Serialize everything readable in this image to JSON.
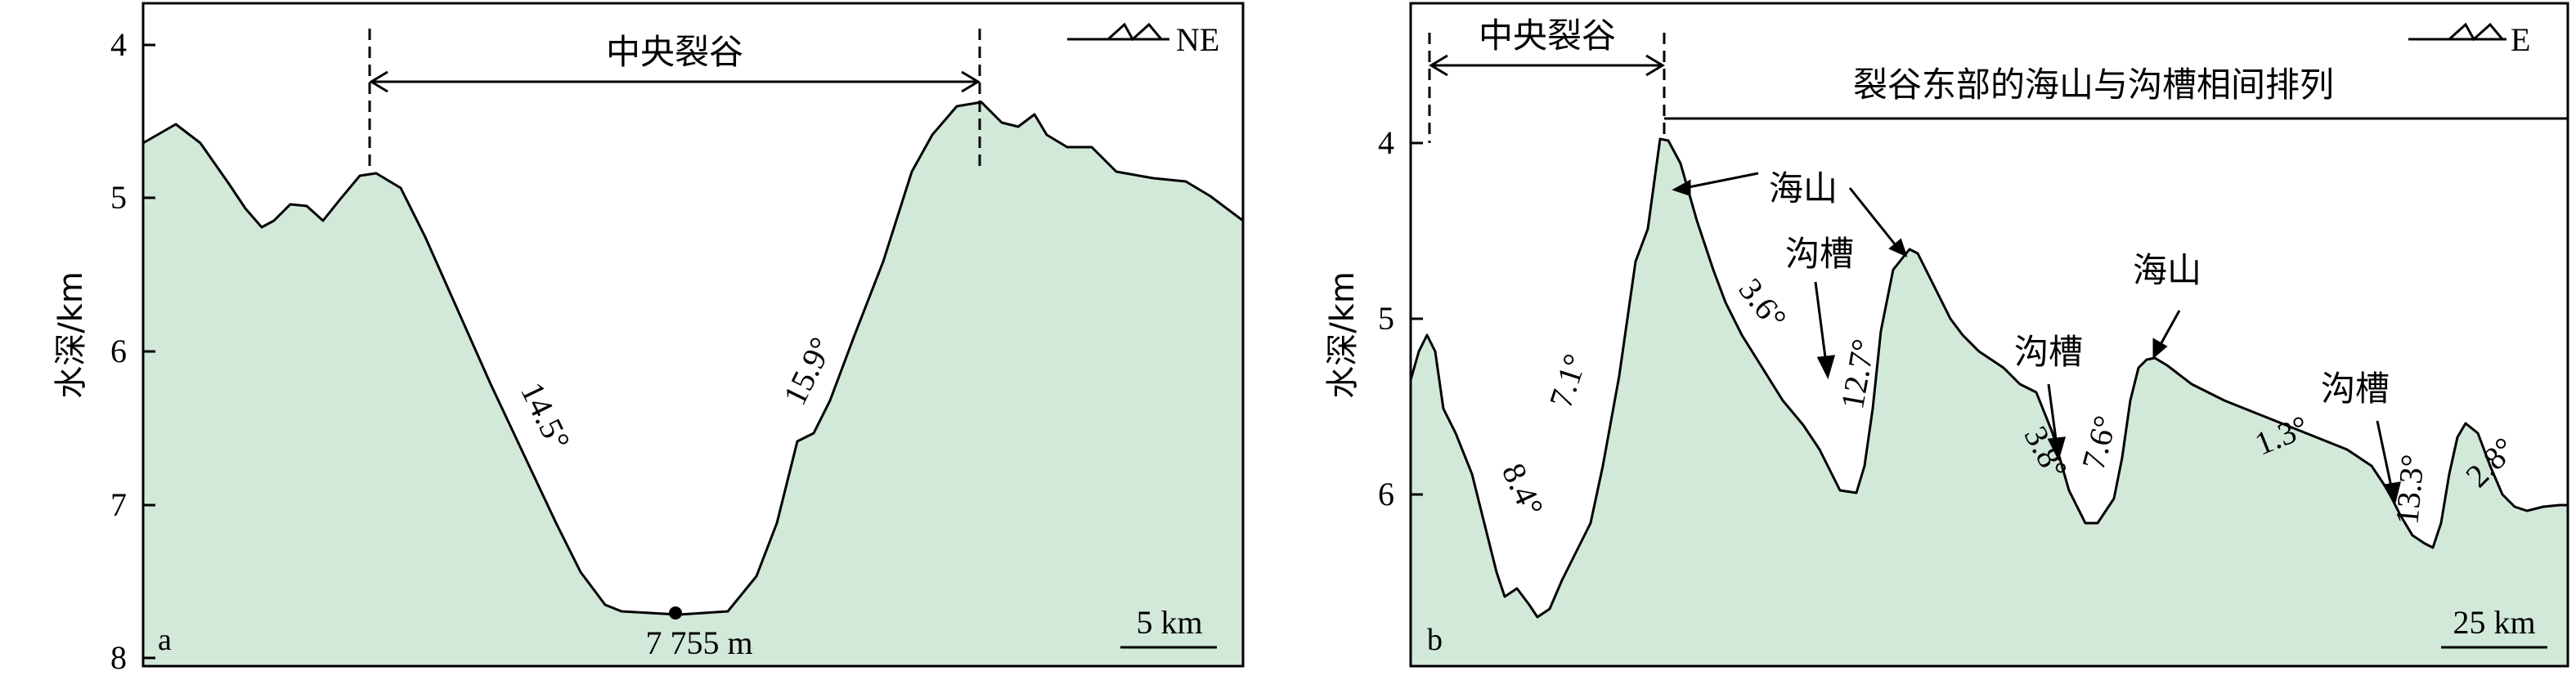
{
  "panel_a": {
    "letter": "a",
    "y_axis_label": "水深/km",
    "y_ticks": [
      "4",
      "5",
      "6",
      "7",
      "8"
    ],
    "direction": "NE",
    "rift_label": "中央裂谷",
    "slope_left": "14.5°",
    "slope_right": "15.9°",
    "deepest_point": "7 755 m",
    "scale_bar": "5 km"
  },
  "panel_b": {
    "letter": "b",
    "y_axis_label": "水深/km",
    "y_ticks": [
      "4",
      "5",
      "6"
    ],
    "direction": "E",
    "rift_label": "中央裂谷",
    "east_label": "裂谷东部的海山与沟槽相间排列",
    "seamount_label_1": "海山",
    "seamount_label_2": "海山",
    "trough_label_1": "沟槽",
    "trough_label_2": "沟槽",
    "trough_label_3": "沟槽",
    "slopes": [
      "8.4°",
      "7.1°",
      "3.6°",
      "12.7°",
      "3.8°",
      "7.6°",
      "1.3°",
      "13.3°",
      "2.8°"
    ],
    "scale_bar": "25 km"
  },
  "colors": {
    "fill": "#d2e8d8",
    "line": "#000000",
    "background": "#ffffff"
  }
}
